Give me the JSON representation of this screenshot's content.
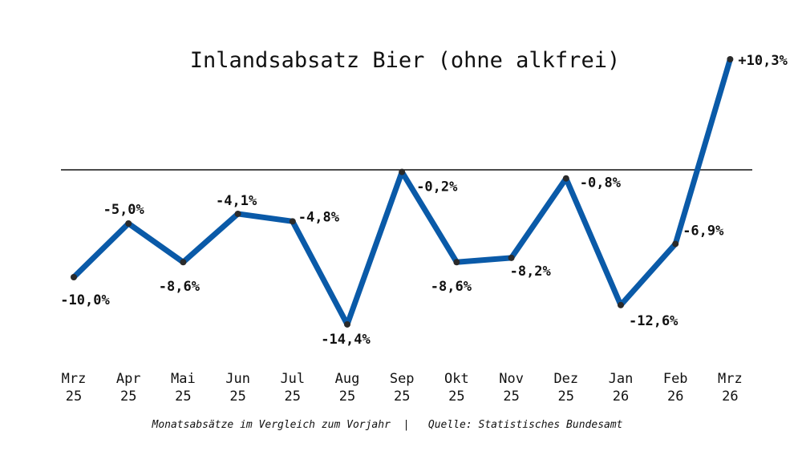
{
  "chart_data": {
    "type": "line",
    "title": "Inlandsabsatz Bier (ohne alkfrei)",
    "caption": "Monatsabsätze im Vergleich zum Vorjahr  |   Quelle: Statistisches Bundesamt",
    "categories": [
      [
        "Mrz",
        "25"
      ],
      [
        "Apr",
        "25"
      ],
      [
        "Mai",
        "25"
      ],
      [
        "Jun",
        "25"
      ],
      [
        "Jul",
        "25"
      ],
      [
        "Aug",
        "25"
      ],
      [
        "Sep",
        "25"
      ],
      [
        "Okt",
        "25"
      ],
      [
        "Nov",
        "25"
      ],
      [
        "Dez",
        "25"
      ],
      [
        "Jan",
        "26"
      ],
      [
        "Feb",
        "26"
      ],
      [
        "Mrz",
        "26"
      ]
    ],
    "values": [
      -10.0,
      -5.0,
      -8.6,
      -4.1,
      -4.8,
      -14.4,
      -0.2,
      -8.6,
      -8.2,
      -0.8,
      -12.6,
      -6.9,
      10.3
    ],
    "data_labels": [
      "-10,0%",
      "-5,0%",
      "-8,6%",
      "-4,1%",
      "-4,8%",
      "-14,4%",
      "-0,2%",
      "-8,6%",
      "-8,2%",
      "-0,8%",
      "-12,6%",
      "-6,9%",
      "+10,3%"
    ],
    "reference_line": 0,
    "ylim": [
      -15,
      11
    ],
    "xlabel": "",
    "ylabel": "",
    "grid": false,
    "line_color": "#0a5aa8",
    "marker_color": "#2a2a2a"
  }
}
